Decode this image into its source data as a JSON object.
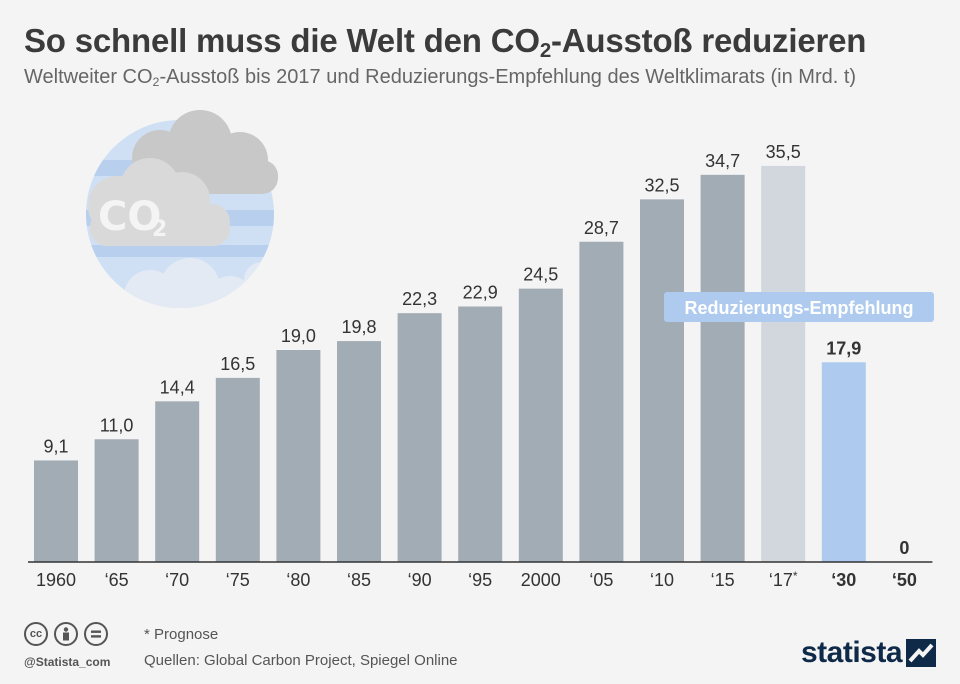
{
  "header": {
    "title_pre": "So schnell muss die Welt den CO",
    "title_sub": "2",
    "title_post": "-Ausstoß reduzieren",
    "subtitle_pre": "Weltweiter CO",
    "subtitle_sub": "2",
    "subtitle_post": "-Ausstoß bis 2017 und Reduzierungs-Empfehlung des Weltklimarats (in Mrd. t)"
  },
  "illustration": {
    "label": "CO2",
    "icon": "co2-cloud-globe-icon"
  },
  "chart_data": {
    "type": "bar",
    "categories": [
      "1960",
      "‘65",
      "‘70",
      "‘75",
      "‘80",
      "‘85",
      "‘90",
      "‘95",
      "2000",
      "‘05",
      "‘10",
      "‘15",
      "‘17*",
      "‘30",
      "‘50"
    ],
    "values": [
      9.1,
      11.0,
      14.4,
      16.5,
      19.0,
      19.8,
      22.3,
      22.9,
      24.5,
      28.7,
      32.5,
      34.7,
      35.5,
      17.9,
      0
    ],
    "value_labels": [
      "9,1",
      "11,0",
      "14,4",
      "16,5",
      "19,0",
      "19,8",
      "22,3",
      "22,9",
      "24,5",
      "28,7",
      "32,5",
      "34,7",
      "35,5",
      "17,9",
      "0"
    ],
    "bar_kind": [
      "historic",
      "historic",
      "historic",
      "historic",
      "historic",
      "historic",
      "historic",
      "historic",
      "historic",
      "historic",
      "historic",
      "historic",
      "forecast",
      "recommendation",
      "recommendation"
    ],
    "ylim": [
      0,
      38
    ],
    "annotation": "Reduzierungs-Empfehlung",
    "colors": {
      "historic": "#a2acb4",
      "forecast": "#d1d7dc",
      "recommendation": "#aecbef",
      "annotation_bg": "#aecbef",
      "axis": "#333333"
    }
  },
  "footer": {
    "note": "* Prognose",
    "sources": "Quellen: Global Carbon Project, Spiegel Online",
    "handle": "@Statista_com",
    "brand": "statista",
    "license_icons": [
      "cc",
      "by",
      "nd"
    ]
  }
}
